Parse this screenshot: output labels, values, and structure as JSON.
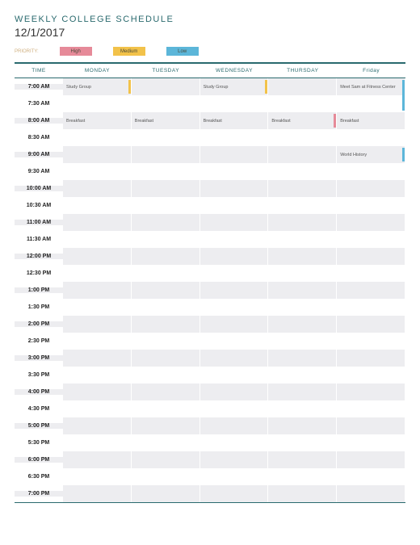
{
  "title": "WEEKLY COLLEGE SCHEDULE",
  "date": "12/1/2017",
  "legend": {
    "label": "PRIORITY:",
    "items": [
      {
        "label": "High",
        "color": "#e68a99"
      },
      {
        "label": "Medium",
        "color": "#f2c24a"
      },
      {
        "label": "Low",
        "color": "#5cb6d9"
      }
    ]
  },
  "colors": {
    "accent": "#2a6a6e",
    "band": "#ededf0",
    "high": "#e68a99",
    "medium": "#f2c24a",
    "low": "#5cb6d9"
  },
  "days": [
    "MONDAY",
    "TUESDAY",
    "WEDNESDAY",
    "THURSDAY",
    "Friday"
  ],
  "time_header": "TIME",
  "times": [
    "7:00 AM",
    "7:30 AM",
    "8:00 AM",
    "8:30 AM",
    "9:00 AM",
    "9:30 AM",
    "10:00 AM",
    "10:30 AM",
    "11:00 AM",
    "11:30 AM",
    "12:00 PM",
    "12:30 PM",
    "1:00 PM",
    "1:30 PM",
    "2:00 PM",
    "2:30 PM",
    "3:00 PM",
    "3:30 PM",
    "4:00 PM",
    "4:30 PM",
    "5:00 PM",
    "5:30 PM",
    "6:00 PM",
    "6:30 PM",
    "7:00 PM"
  ],
  "events": [
    {
      "time_idx": 0,
      "day_idx": 0,
      "text": "Study Group",
      "priority": "medium"
    },
    {
      "time_idx": 0,
      "day_idx": 2,
      "text": "Study Group",
      "priority": "medium"
    },
    {
      "time_idx": 0,
      "day_idx": 4,
      "text": "Meet Sam at Fitness Center",
      "priority": "low",
      "rowspan": 2
    },
    {
      "time_idx": 2,
      "day_idx": 0,
      "text": "Breakfast",
      "priority": ""
    },
    {
      "time_idx": 2,
      "day_idx": 1,
      "text": "Breakfast",
      "priority": ""
    },
    {
      "time_idx": 2,
      "day_idx": 2,
      "text": "Breakfast",
      "priority": ""
    },
    {
      "time_idx": 2,
      "day_idx": 3,
      "text": "Breakfast",
      "priority": "high"
    },
    {
      "time_idx": 2,
      "day_idx": 4,
      "text": "Breakfast",
      "priority": ""
    },
    {
      "time_idx": 4,
      "day_idx": 4,
      "text": "World History",
      "priority": "low"
    }
  ]
}
